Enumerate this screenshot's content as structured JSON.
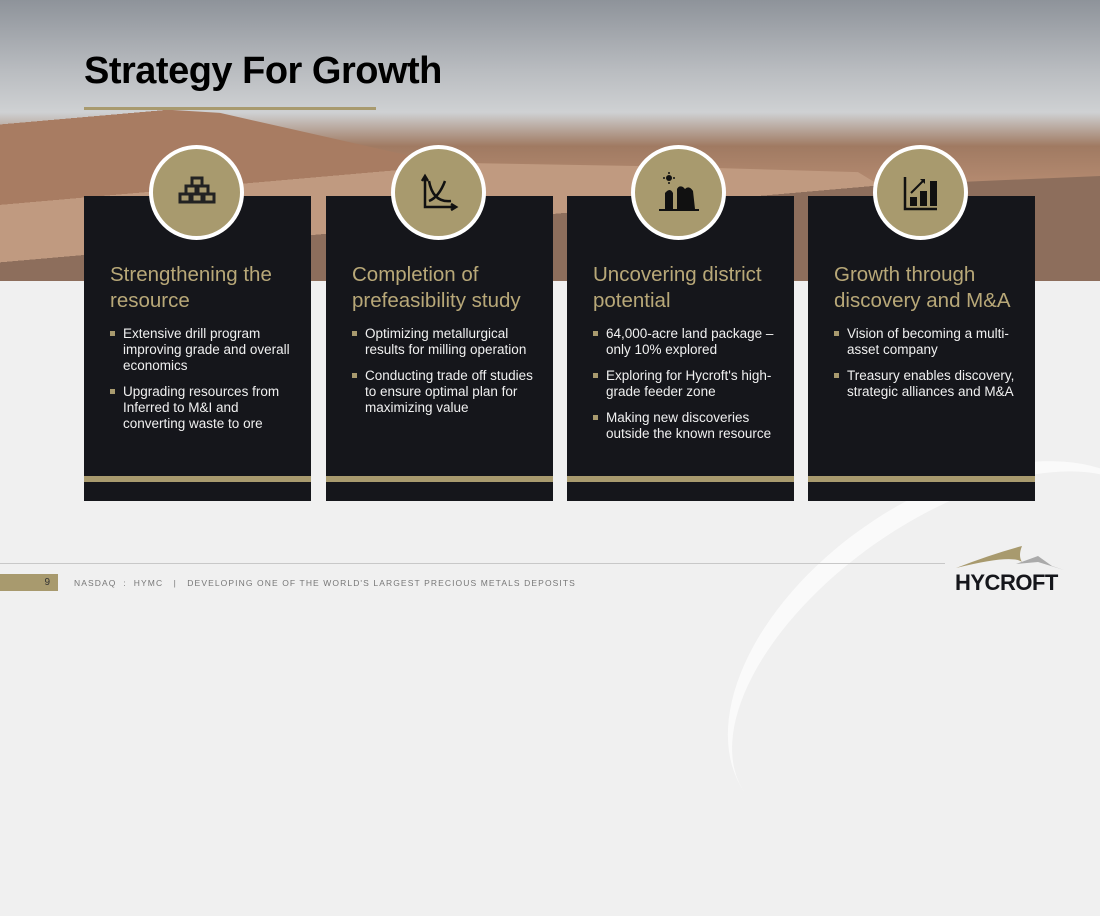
{
  "title": "Strategy For Growth",
  "cards": [
    {
      "icon": "gold-bars-icon",
      "heading": "Strengthening the resource",
      "bullets": [
        "Extensive drill program improving grade and overall economics",
        "Upgrading resources from Inferred to M&I and converting waste to ore"
      ]
    },
    {
      "icon": "chart-curves-icon",
      "heading": "Completion of prefeasibility study",
      "bullets": [
        "Optimizing metallurgical results for milling operation",
        "Conducting trade off studies to ensure optimal plan for maximizing value"
      ]
    },
    {
      "icon": "landscape-sun-icon",
      "heading": "Uncovering district potential",
      "bullets": [
        "64,000-acre land package – only 10% explored",
        "Exploring for Hycroft's high-grade feeder zone",
        "Making new discoveries outside the known resource"
      ]
    },
    {
      "icon": "bar-chart-growth-icon",
      "heading": "Growth through discovery and M&A",
      "bullets": [
        "Vision of becoming a multi-asset company",
        "Treasury enables discovery, strategic alliances and M&A"
      ]
    }
  ],
  "footer": {
    "page": "9",
    "text": "NASDAQ  :  HYMC   |   DEVELOPING ONE OF THE WORLD'S LARGEST PRECIOUS METALS DEPOSITS"
  },
  "logo": "HYCROFT",
  "colors": {
    "gold": "#a89a6e",
    "card": "#15161b"
  }
}
